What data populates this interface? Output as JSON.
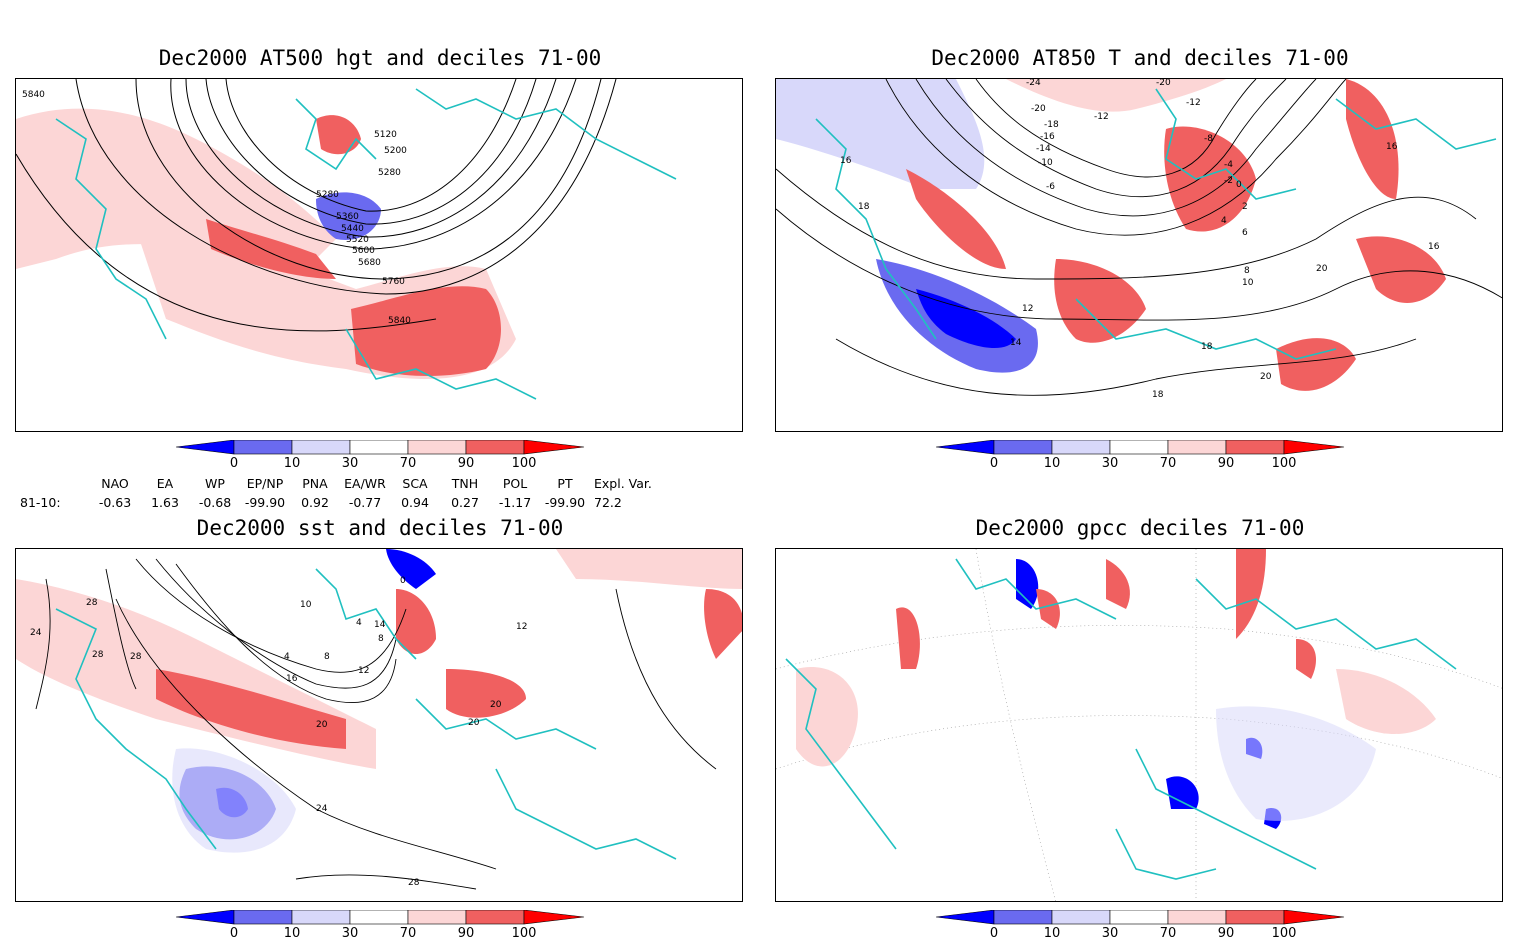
{
  "panels": [
    {
      "title": "Dec2000 AT500 hgt and deciles 71-00",
      "contour_labels": [
        "5840",
        "5120",
        "5200",
        "5280",
        "5280",
        "5360",
        "5440",
        "5520",
        "5600",
        "5680",
        "5760",
        "5840"
      ]
    },
    {
      "title": "Dec2000 AT850 T and deciles 71-00",
      "contour_labels": [
        "-24",
        "-20",
        "-20",
        "-18",
        "-16",
        "-14",
        "-12",
        "-12",
        "-10",
        "-8",
        "-6",
        "-4",
        "-2",
        "0",
        "2",
        "4",
        "6",
        "8",
        "10",
        "12",
        "14",
        "16",
        "16",
        "16",
        "18",
        "18",
        "18",
        "20",
        "20"
      ]
    },
    {
      "title": "Dec2000 sst and deciles 71-00",
      "contour_labels": [
        "24",
        "28",
        "28",
        "28",
        "0",
        "10",
        "4",
        "14",
        "4",
        "8",
        "8",
        "12",
        "16",
        "20",
        "24",
        "28",
        "20",
        "20",
        "12"
      ]
    },
    {
      "title": "Dec2000 gpcc deciles 71-00",
      "contour_labels": []
    }
  ],
  "colorbar": {
    "ticks": [
      "0",
      "10",
      "30",
      "70",
      "90",
      "100"
    ],
    "colors": [
      "#0000ff",
      "#6a6af0",
      "#d8d8fa",
      "#ffffff",
      "#fcd6d6",
      "#f06060",
      "#ff0000"
    ]
  },
  "indices": {
    "headers": [
      "NAO",
      "EA",
      "WP",
      "EP/NP",
      "PNA",
      "EA/WR",
      "SCA",
      "TNH",
      "POL",
      "PT",
      "Expl. Var."
    ],
    "row_label": "81-10:",
    "values": [
      "-0.63",
      "1.63",
      "-0.68",
      "-99.90",
      "0.92",
      "-0.77",
      "0.94",
      "0.27",
      "-1.17",
      "-99.90",
      "72.2"
    ]
  },
  "colors": {
    "coast": "#20c0c0",
    "contour": "#000000"
  }
}
